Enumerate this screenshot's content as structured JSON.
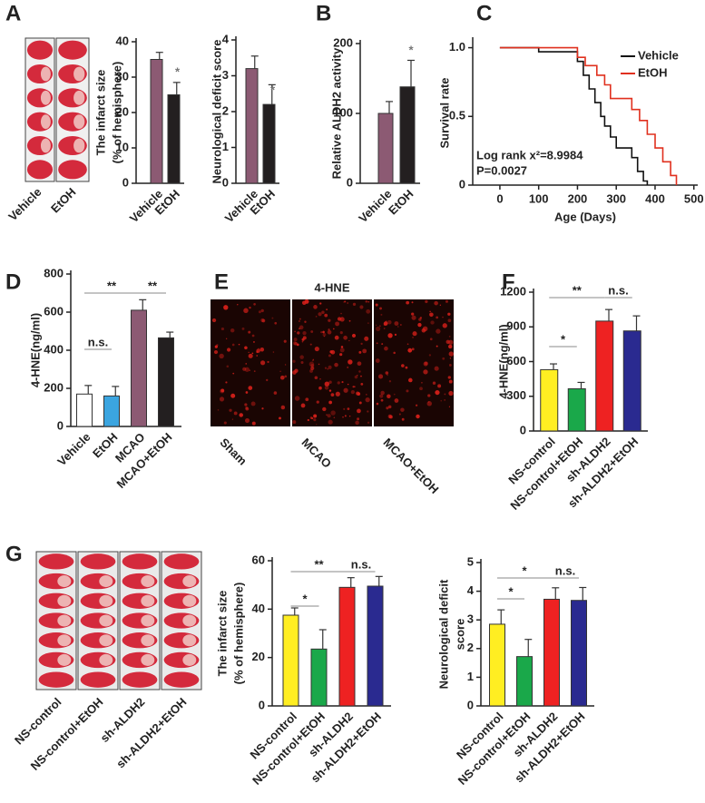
{
  "chart_data": [
    {
      "type": "bar",
      "ylabel": [
        "The infarct size",
        "(% of hemisphere)"
      ],
      "categories": [
        "Vehicle",
        "EtOH"
      ],
      "values": [
        35,
        25
      ],
      "errors": [
        2,
        3.5
      ],
      "colors": [
        "#8c5a73",
        "#231f20"
      ],
      "ylim": [
        0,
        40
      ],
      "yticks": [
        0,
        10,
        20,
        30,
        40
      ],
      "annotations": [
        "*"
      ]
    },
    {
      "type": "bar",
      "ylabel": [
        "Neurological deficit score"
      ],
      "categories": [
        "Vehicle",
        "EtOH"
      ],
      "values": [
        3.2,
        2.2
      ],
      "errors": [
        0.35,
        0.55
      ],
      "colors": [
        "#8c5a73",
        "#231f20"
      ],
      "ylim": [
        0,
        4
      ],
      "yticks": [
        0,
        1,
        2,
        3,
        4
      ],
      "annotations": [
        "*"
      ]
    },
    {
      "type": "bar",
      "panel": "B",
      "ylabel": [
        "Relative ALDH2 activity"
      ],
      "categories": [
        "Vehicle",
        "EtOH"
      ],
      "values": [
        100,
        138
      ],
      "errors": [
        17,
        38
      ],
      "colors": [
        "#8c5a73",
        "#231f20"
      ],
      "ylim": [
        0,
        200
      ],
      "yticks": [
        0,
        100,
        200
      ],
      "annotations": [
        "*"
      ]
    },
    {
      "type": "line",
      "panel": "C",
      "ylabel": "Survival rate",
      "xlabel": "Age (Days)",
      "xlim": [
        -70,
        510
      ],
      "xticks": [
        0,
        100,
        200,
        300,
        400,
        500
      ],
      "ylim": [
        0,
        1.05
      ],
      "yticks": [
        0,
        0.5,
        {
          "value": 1,
          "label": "1.0"
        }
      ],
      "annotations": [
        "Log rank x²=8.9984",
        "P=0.0027"
      ],
      "series": [
        {
          "name": "Vehicle",
          "color": "#111111",
          "x": [
            0,
            100,
            100,
            200,
            200,
            215,
            215,
            230,
            230,
            245,
            245,
            260,
            260,
            270,
            270,
            285,
            285,
            300,
            300,
            340,
            340,
            355,
            355,
            370,
            370,
            380,
            380
          ],
          "values": [
            1,
            1,
            0.97,
            0.97,
            0.9,
            0.9,
            0.8,
            0.8,
            0.7,
            0.7,
            0.6,
            0.6,
            0.5,
            0.5,
            0.43,
            0.43,
            0.35,
            0.35,
            0.27,
            0.27,
            0.2,
            0.2,
            0.1,
            0.1,
            0.03,
            0.03,
            0
          ]
        },
        {
          "name": "EtOH",
          "color": "#e0301e",
          "x": [
            0,
            200,
            200,
            220,
            220,
            250,
            250,
            270,
            270,
            285,
            285,
            340,
            340,
            360,
            360,
            380,
            380,
            400,
            400,
            420,
            420,
            440,
            440,
            455,
            455
          ],
          "values": [
            1,
            1,
            0.93,
            0.93,
            0.87,
            0.87,
            0.8,
            0.8,
            0.73,
            0.73,
            0.63,
            0.63,
            0.55,
            0.55,
            0.47,
            0.47,
            0.37,
            0.37,
            0.27,
            0.27,
            0.17,
            0.17,
            0.07,
            0.07,
            0
          ]
        }
      ]
    },
    {
      "type": "bar",
      "panel": "D",
      "ylabel": [
        "4-HNE(ng/ml)"
      ],
      "categories": [
        "Vehicle",
        "EtOH",
        "MCAO",
        "MCAO+EtOH"
      ],
      "values": [
        170,
        160,
        610,
        465
      ],
      "errors": [
        45,
        50,
        55,
        30
      ],
      "colors": [
        "#ffffff",
        "#3ba5e0",
        "#8c5a73",
        "#231f20"
      ],
      "ylim": [
        0,
        800
      ],
      "yticks": [
        0,
        200,
        400,
        600,
        800
      ],
      "annotations": [
        "n.s.",
        "**",
        "**"
      ]
    },
    {
      "type": "bar",
      "panel": "F",
      "ylabel": [
        "4-HNE(ng/ml)"
      ],
      "categories": [
        "NS-control",
        "NS-control+EtOH",
        "sh-ALDH2",
        "sh-ALDH2+EtOH"
      ],
      "values": [
        530,
        365,
        950,
        865
      ],
      "errors": [
        50,
        55,
        100,
        130
      ],
      "colors": [
        "#ffee22",
        "#1aa84a",
        "#ee2222",
        "#2a2a90"
      ],
      "ylim": [
        0,
        1200
      ],
      "yticks": [
        0,
        300,
        600,
        900,
        1200
      ],
      "annotations": [
        "*",
        "**",
        "n.s."
      ]
    },
    {
      "type": "bar",
      "ylabel": [
        "The infarct size",
        "(% of hemisphere)"
      ],
      "categories": [
        "NS-control",
        "NS-control+EtOH",
        "sh-ALDH2",
        "sh-ALDH2+EtOH"
      ],
      "values": [
        37.5,
        23.5,
        49,
        49.5
      ],
      "errors": [
        3,
        8,
        4,
        4
      ],
      "colors": [
        "#ffee22",
        "#1aa84a",
        "#ee2222",
        "#2a2a90"
      ],
      "ylim": [
        0,
        60
      ],
      "yticks": [
        0,
        20,
        40,
        60
      ],
      "annotations": [
        "*",
        "**",
        "n.s."
      ]
    },
    {
      "type": "bar",
      "ylabel": [
        "Neurological deficit",
        "score"
      ],
      "categories": [
        "NS-control",
        "NS-control+EtOH",
        "sh-ALDH2",
        "sh-ALDH2+EtOH"
      ],
      "values": [
        2.85,
        1.72,
        3.72,
        3.68
      ],
      "errors": [
        0.5,
        0.6,
        0.4,
        0.45
      ],
      "colors": [
        "#ffee22",
        "#1aa84a",
        "#ee2222",
        "#2a2a90"
      ],
      "ylim": [
        0,
        5
      ],
      "yticks": [
        0,
        1,
        2,
        3,
        4,
        5
      ],
      "annotations": [
        "*",
        "*",
        "n.s."
      ]
    }
  ],
  "images": [
    {
      "panel": "A",
      "labels": [
        "Vehicle",
        "EtOH"
      ]
    },
    {
      "panel": "E",
      "title": "4-HNE",
      "labels": [
        "Sham",
        "MCAO",
        "MCAO+EtOH"
      ]
    },
    {
      "panel": "G",
      "labels": [
        "NS-control",
        "NS-control+EtOH",
        "sh-ALDH2",
        "sh-ALDH2+EtOH"
      ]
    }
  ]
}
